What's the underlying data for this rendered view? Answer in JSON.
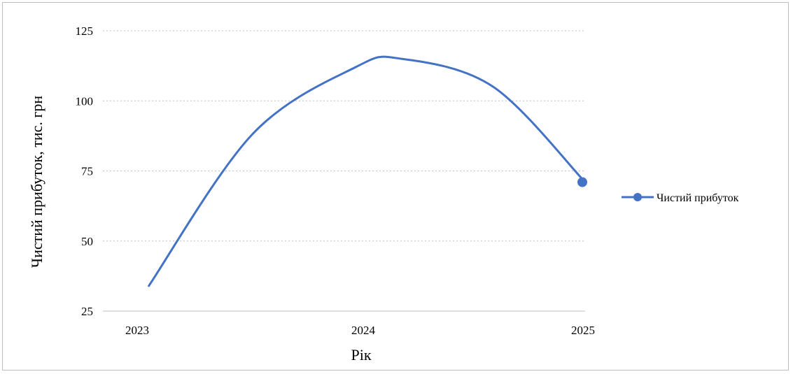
{
  "chart_data": {
    "type": "line",
    "xlabel": "Рік",
    "ylabel": "Чистий прибуток, тис. грн",
    "x_ticks": [
      "2023",
      "2024",
      "2025"
    ],
    "y_ticks": [
      25,
      50,
      75,
      100,
      125
    ],
    "xlim": [
      2022.9,
      2025.0
    ],
    "ylim": [
      25,
      125
    ],
    "grid": true,
    "grid_style": "dotted horizontal",
    "legend_position": "right",
    "smooth": true,
    "series": [
      {
        "name": "Чистий прибуток",
        "color": "#4472c4",
        "points": [
          {
            "x": 2023.1,
            "y": 34
          },
          {
            "x": 2023.55,
            "y": 88
          },
          {
            "x": 2024.0,
            "y": 112
          },
          {
            "x": 2024.2,
            "y": 115
          },
          {
            "x": 2024.6,
            "y": 105
          },
          {
            "x": 2025.0,
            "y": 71
          }
        ],
        "end_marker": true
      }
    ]
  }
}
